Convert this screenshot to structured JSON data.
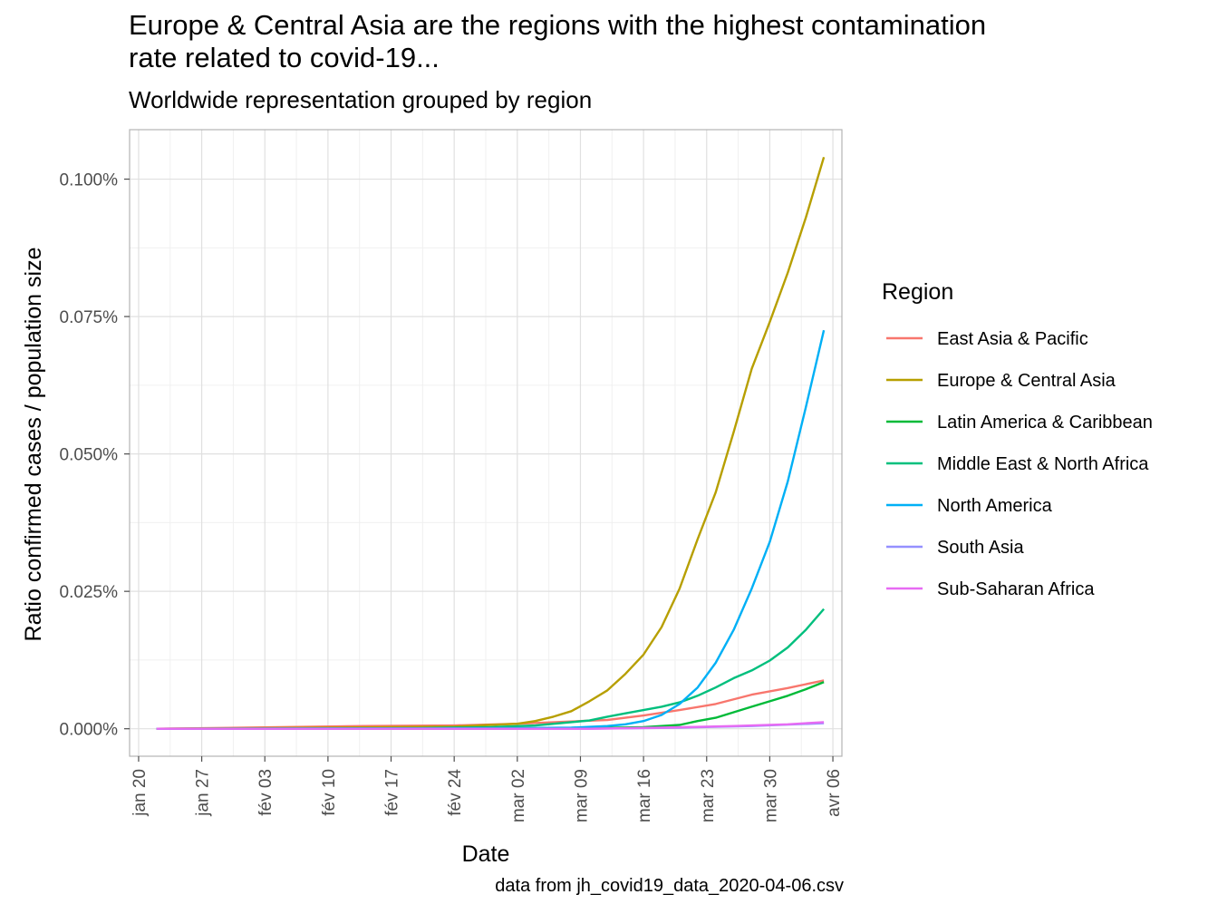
{
  "chart_data": {
    "type": "line",
    "title": "Europe & Central Asia are the regions with the highest contamination rate related to covid-19...",
    "subtitle": "Worldwide representation grouped by region",
    "xlabel": "Date",
    "ylabel": "Ratio confirmed cases / population size",
    "caption": "data from jh_covid19_data_2020-04-06.csv",
    "legend_title": "Region",
    "legend_position": "right",
    "grid": true,
    "xlim": [
      "2020-01-19",
      "2020-04-07"
    ],
    "ylim": [
      -0.005,
      0.109
    ],
    "x_ticks": [
      {
        "date": "2020-01-20",
        "label": "jan 20"
      },
      {
        "date": "2020-01-27",
        "label": "jan 27"
      },
      {
        "date": "2020-02-03",
        "label": "fév 03"
      },
      {
        "date": "2020-02-10",
        "label": "fév 10"
      },
      {
        "date": "2020-02-17",
        "label": "fév 17"
      },
      {
        "date": "2020-02-24",
        "label": "fév 24"
      },
      {
        "date": "2020-03-02",
        "label": "mar 02"
      },
      {
        "date": "2020-03-09",
        "label": "mar 09"
      },
      {
        "date": "2020-03-16",
        "label": "mar 16"
      },
      {
        "date": "2020-03-23",
        "label": "mar 23"
      },
      {
        "date": "2020-03-30",
        "label": "mar 30"
      },
      {
        "date": "2020-04-06",
        "label": "avr 06"
      }
    ],
    "y_ticks": [
      {
        "value": 0,
        "label": "0.000%"
      },
      {
        "value": 0.025,
        "label": "0.025%"
      },
      {
        "value": 0.05,
        "label": "0.050%"
      },
      {
        "value": 0.075,
        "label": "0.075%"
      },
      {
        "value": 0.1,
        "label": "0.100%"
      }
    ],
    "series": [
      {
        "name": "East Asia & Pacific",
        "color": "#F8766D",
        "points": [
          [
            "2020-01-22",
            0
          ],
          [
            "2020-02-01",
            0.0002
          ],
          [
            "2020-02-14",
            0.0005
          ],
          [
            "2020-02-24",
            0.0006
          ],
          [
            "2020-03-02",
            0.0009
          ],
          [
            "2020-03-09",
            0.0014
          ],
          [
            "2020-03-12",
            0.0016
          ],
          [
            "2020-03-16",
            0.0024
          ],
          [
            "2020-03-20",
            0.0034
          ],
          [
            "2020-03-24",
            0.0045
          ],
          [
            "2020-03-28",
            0.0062
          ],
          [
            "2020-04-01",
            0.0074
          ],
          [
            "2020-04-05",
            0.0088
          ]
        ]
      },
      {
        "name": "Europe & Central Asia",
        "color": "#B79F00",
        "points": [
          [
            "2020-01-22",
            0
          ],
          [
            "2020-02-10",
            0.0002
          ],
          [
            "2020-02-24",
            0.0004
          ],
          [
            "2020-02-28",
            0.0007
          ],
          [
            "2020-03-02",
            0.0009
          ],
          [
            "2020-03-04",
            0.0014
          ],
          [
            "2020-03-06",
            0.0022
          ],
          [
            "2020-03-08",
            0.0032
          ],
          [
            "2020-03-10",
            0.005
          ],
          [
            "2020-03-12",
            0.007
          ],
          [
            "2020-03-14",
            0.01
          ],
          [
            "2020-03-16",
            0.0135
          ],
          [
            "2020-03-18",
            0.0185
          ],
          [
            "2020-03-20",
            0.0255
          ],
          [
            "2020-03-22",
            0.0345
          ],
          [
            "2020-03-24",
            0.043
          ],
          [
            "2020-03-26",
            0.054
          ],
          [
            "2020-03-28",
            0.0655
          ],
          [
            "2020-03-30",
            0.074
          ],
          [
            "2020-04-01",
            0.083
          ],
          [
            "2020-04-03",
            0.093
          ],
          [
            "2020-04-05",
            0.104
          ]
        ]
      },
      {
        "name": "Latin America & Caribbean",
        "color": "#00BA38",
        "points": [
          [
            "2020-01-22",
            0
          ],
          [
            "2020-03-01",
            0
          ],
          [
            "2020-03-10",
            0.0001
          ],
          [
            "2020-03-16",
            0.0003
          ],
          [
            "2020-03-20",
            0.0007
          ],
          [
            "2020-03-22",
            0.0014
          ],
          [
            "2020-03-24",
            0.002
          ],
          [
            "2020-03-26",
            0.003
          ],
          [
            "2020-03-28",
            0.004
          ],
          [
            "2020-03-30",
            0.005
          ],
          [
            "2020-04-01",
            0.006
          ],
          [
            "2020-04-03",
            0.0072
          ],
          [
            "2020-04-05",
            0.0085
          ]
        ]
      },
      {
        "name": "Middle East & North Africa",
        "color": "#00BF7D",
        "points": [
          [
            "2020-01-22",
            0
          ],
          [
            "2020-02-20",
            0.0001
          ],
          [
            "2020-02-28",
            0.0003
          ],
          [
            "2020-03-04",
            0.0006
          ],
          [
            "2020-03-08",
            0.0012
          ],
          [
            "2020-03-10",
            0.0015
          ],
          [
            "2020-03-12",
            0.0022
          ],
          [
            "2020-03-14",
            0.0028
          ],
          [
            "2020-03-16",
            0.0034
          ],
          [
            "2020-03-18",
            0.004
          ],
          [
            "2020-03-20",
            0.0048
          ],
          [
            "2020-03-22",
            0.006
          ],
          [
            "2020-03-24",
            0.0075
          ],
          [
            "2020-03-26",
            0.0092
          ],
          [
            "2020-03-28",
            0.0106
          ],
          [
            "2020-03-30",
            0.0124
          ],
          [
            "2020-04-01",
            0.0148
          ],
          [
            "2020-04-03",
            0.018
          ],
          [
            "2020-04-05",
            0.0218
          ]
        ]
      },
      {
        "name": "North America",
        "color": "#00B0F6",
        "points": [
          [
            "2020-01-22",
            0
          ],
          [
            "2020-03-01",
            0.0001
          ],
          [
            "2020-03-08",
            0.0002
          ],
          [
            "2020-03-12",
            0.0005
          ],
          [
            "2020-03-14",
            0.0008
          ],
          [
            "2020-03-16",
            0.0014
          ],
          [
            "2020-03-18",
            0.0025
          ],
          [
            "2020-03-20",
            0.0045
          ],
          [
            "2020-03-22",
            0.0075
          ],
          [
            "2020-03-24",
            0.012
          ],
          [
            "2020-03-26",
            0.018
          ],
          [
            "2020-03-28",
            0.0255
          ],
          [
            "2020-03-30",
            0.034
          ],
          [
            "2020-04-01",
            0.045
          ],
          [
            "2020-04-03",
            0.0585
          ],
          [
            "2020-04-05",
            0.0725
          ]
        ]
      },
      {
        "name": "South Asia",
        "color": "#9590FF",
        "points": [
          [
            "2020-01-22",
            0
          ],
          [
            "2020-03-10",
            0
          ],
          [
            "2020-03-20",
            0.0002
          ],
          [
            "2020-03-28",
            0.0005
          ],
          [
            "2020-04-05",
            0.001
          ]
        ]
      },
      {
        "name": "Sub-Saharan Africa",
        "color": "#E76BF3",
        "points": [
          [
            "2020-01-22",
            0
          ],
          [
            "2020-03-10",
            0
          ],
          [
            "2020-03-18",
            0.0002
          ],
          [
            "2020-03-26",
            0.0005
          ],
          [
            "2020-04-01",
            0.0008
          ],
          [
            "2020-04-05",
            0.0012
          ]
        ]
      }
    ]
  }
}
